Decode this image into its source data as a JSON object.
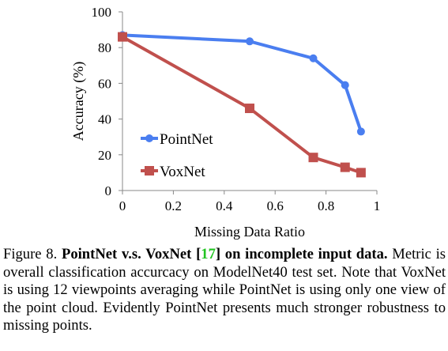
{
  "chart_data": {
    "type": "line",
    "x": [
      0,
      0.5,
      0.75,
      0.875,
      0.9375
    ],
    "series": [
      {
        "name": "PointNet",
        "values": [
          87,
          83.5,
          74,
          59,
          33
        ],
        "color": "#4a7ef0",
        "marker": "circle"
      },
      {
        "name": "VoxNet",
        "values": [
          86,
          46,
          18.5,
          13,
          10
        ],
        "color": "#c0504d",
        "marker": "square"
      }
    ],
    "xlabel": "Missing Data Ratio",
    "ylabel": "Accuracy (%)",
    "xlim": [
      0,
      1
    ],
    "ylim": [
      0,
      100
    ],
    "xticks": [
      "0",
      "0.2",
      "0.4",
      "0.6",
      "0.8",
      "1"
    ],
    "yticks": [
      "0",
      "20",
      "40",
      "60",
      "80",
      "100"
    ],
    "grid": false,
    "legend_position": "inside-left"
  },
  "caption": {
    "label": "Figure 8.",
    "bold_part1": "PointNet v.s.  VoxNet [",
    "ref": "17",
    "bold_part2": "] on incomplete input data.",
    "body": "Metric is overall classification accurcacy on ModelNet40 test set. Note that VoxNet is using 12 viewpoints averaging while PointNet is using only one view of the point cloud.  Evidently PointNet presents much stronger robustness to missing points."
  }
}
